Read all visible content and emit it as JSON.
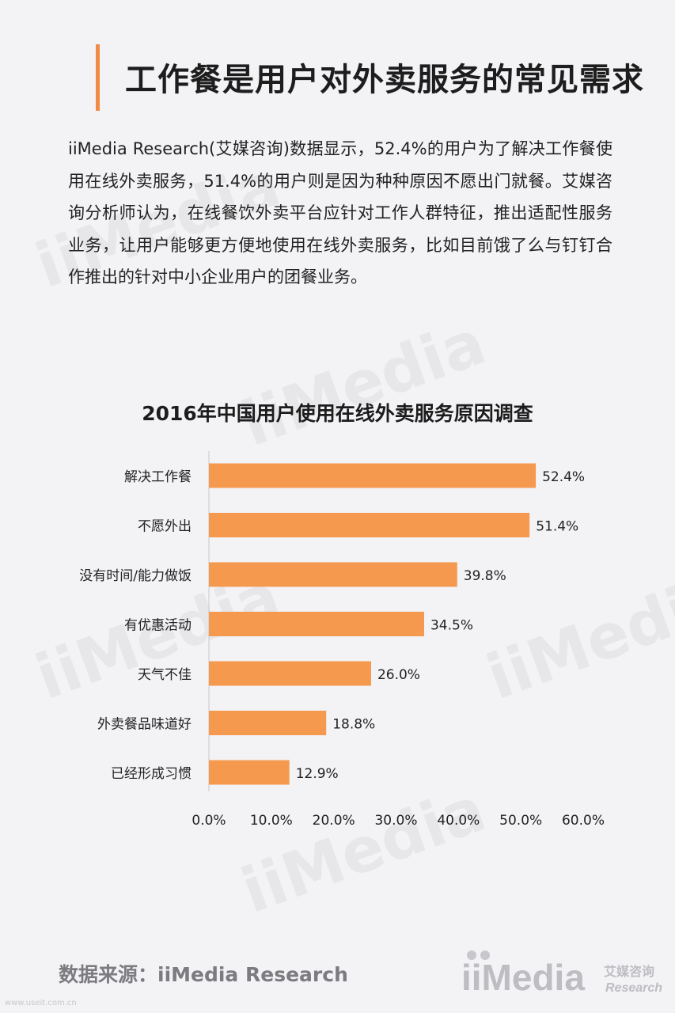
{
  "header": {
    "title": "工作餐是用户对外卖服务的常见需求"
  },
  "body": {
    "paragraph": "iiMedia Research(艾媒咨询)数据显示，52.4%的用户为了解决工作餐使用在线外卖服务，51.4%的用户则是因为种种原因不愿出门就餐。艾媒咨询分析师认为，在线餐饮外卖平台应针对工作人群特征，推出适配性服务业务，让用户能够更方便地使用在线外卖服务，比如目前饿了么与钉钉合作推出的针对中小企业用户的团餐业务。"
  },
  "chart_data": {
    "type": "bar",
    "orientation": "horizontal",
    "title": "2016年中国用户使用在线外卖服务原因调查",
    "categories": [
      "解决工作餐",
      "不愿外出",
      "没有时间/能力做饭",
      "有优惠活动",
      "天气不佳",
      "外卖餐品味道好",
      "已经形成习惯"
    ],
    "values": [
      52.4,
      51.4,
      39.8,
      34.5,
      26.0,
      18.8,
      12.9
    ],
    "value_labels": [
      "52.4%",
      "51.4%",
      "39.8%",
      "34.5%",
      "26.0%",
      "18.8%",
      "12.9%"
    ],
    "xlim": [
      0,
      60
    ],
    "ticks": [
      "0.0%",
      "10.0%",
      "20.0%",
      "30.0%",
      "40.0%",
      "50.0%",
      "60.0%"
    ],
    "tick_values": [
      0,
      10,
      20,
      30,
      40,
      50,
      60
    ],
    "bar_color": "#f5994e",
    "grid": false,
    "legend": "none"
  },
  "footer": {
    "source": "数据来源：iiMedia Research",
    "url": "www.useit.com.cn"
  },
  "branding": {
    "logo_text": "iiMedia",
    "logo_cn": "艾媒咨询",
    "logo_en": "Research",
    "accent": "#f08a45"
  }
}
